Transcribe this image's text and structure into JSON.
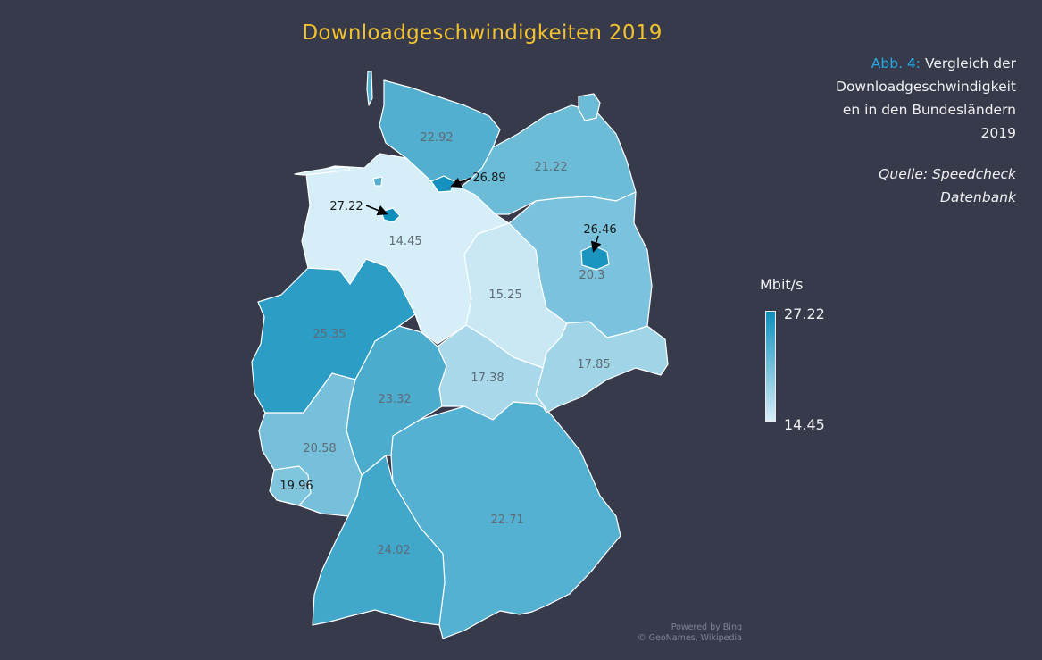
{
  "title": "Downloadgeschwindigkeiten 2019",
  "caption": {
    "figure_label": "Abb. 4:",
    "text_line1": "Vergleich der",
    "text_line2": "Downloadgeschwindigkeit",
    "text_line3": "en in den Bundesländern",
    "text_line4": "2019"
  },
  "source": {
    "line1": "Quelle: Speedcheck",
    "line2": "Datenbank"
  },
  "legend": {
    "title": "Mbit/s",
    "max_label": "27.22",
    "min_label": "14.45",
    "color_max": "#0f8fbc",
    "color_min": "#d5eef8"
  },
  "attribution": {
    "line1": "Powered by Bing",
    "line2": "© GeoNames, Wikipedia"
  },
  "chart_data": {
    "type": "choropleth",
    "title": "Downloadgeschwindigkeiten 2019",
    "unit": "Mbit/s",
    "range": [
      14.45,
      27.22
    ],
    "regions": [
      {
        "name": "Schleswig-Holstein",
        "label": "22.92",
        "value": 22.92
      },
      {
        "name": "Hamburg",
        "label": "26.89",
        "value": 26.89
      },
      {
        "name": "Mecklenburg-Vorpommern",
        "label": "21.22",
        "value": 21.22
      },
      {
        "name": "Bremen",
        "label": "27.22",
        "value": 27.22
      },
      {
        "name": "Niedersachsen",
        "label": "14.45",
        "value": 14.45
      },
      {
        "name": "Berlin",
        "label": "26.46",
        "value": 26.46
      },
      {
        "name": "Brandenburg",
        "label": "20.3",
        "value": 20.3
      },
      {
        "name": "Sachsen-Anhalt",
        "label": "15.25",
        "value": 15.25
      },
      {
        "name": "Nordrhein-Westfalen",
        "label": "25.35",
        "value": 25.35
      },
      {
        "name": "Hessen",
        "label": "23.32",
        "value": 23.32
      },
      {
        "name": "Thüringen",
        "label": "17.38",
        "value": 17.38
      },
      {
        "name": "Sachsen",
        "label": "17.85",
        "value": 17.85
      },
      {
        "name": "Rheinland-Pfalz",
        "label": "20.58",
        "value": 20.58
      },
      {
        "name": "Saarland",
        "label": "19.96",
        "value": 19.96
      },
      {
        "name": "Baden-Württemberg",
        "label": "24.02",
        "value": 24.02
      },
      {
        "name": "Bayern",
        "label": "22.71",
        "value": 22.71
      }
    ]
  }
}
